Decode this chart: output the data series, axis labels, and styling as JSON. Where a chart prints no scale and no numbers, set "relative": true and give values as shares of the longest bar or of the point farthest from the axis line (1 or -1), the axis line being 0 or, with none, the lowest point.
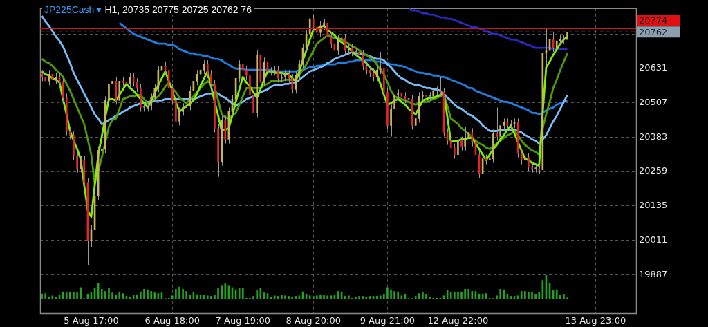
{
  "chart_data": [
    {
      "type": "candlestick",
      "title": "JP225Cash",
      "subtitle": "H1, 20735 20775 20725 20762 76",
      "categories": [
        null,
        null,
        null,
        null,
        null,
        null,
        null,
        null,
        null,
        null,
        null,
        null,
        null,
        null,
        "5 Aug 17:00",
        null,
        null,
        null,
        null,
        null,
        null,
        null,
        null,
        null,
        null,
        null,
        null,
        null,
        null,
        null,
        null,
        null,
        null,
        null,
        null,
        null,
        null,
        "6 Aug 18:00",
        null,
        null,
        null,
        null,
        null,
        null,
        null,
        null,
        null,
        null,
        null,
        null,
        null,
        null,
        null,
        null,
        null,
        null,
        null,
        "7 Aug 19:00",
        null,
        null,
        null,
        null,
        null,
        null,
        null,
        null,
        null,
        null,
        null,
        null,
        null,
        null,
        null,
        null,
        null,
        null,
        null,
        "8 Aug 20:00",
        null,
        null,
        null,
        null,
        null,
        null,
        null,
        null,
        null,
        null,
        null,
        null,
        null,
        null,
        null,
        null,
        null,
        null,
        null,
        null,
        "9 Aug 21:00",
        null,
        null,
        null,
        null,
        null,
        null,
        null,
        null,
        null,
        null,
        null,
        null,
        null,
        null,
        null,
        null,
        null,
        null,
        null,
        "12 Aug 22:00",
        null,
        null,
        null,
        null,
        null,
        null,
        null,
        null,
        null,
        null,
        null,
        null,
        null,
        null,
        null,
        null,
        null,
        null,
        null,
        null,
        null,
        null,
        null,
        null,
        null,
        null,
        null,
        null,
        null,
        null,
        null,
        null,
        null,
        null,
        null,
        null,
        null,
        null,
        "13 Aug 23:00",
        null,
        null,
        null,
        null,
        null,
        null,
        null,
        null,
        null,
        null,
        null
      ],
      "ohlc": [
        [
          20610,
          20625,
          20585,
          20600
        ],
        [
          20600,
          20615,
          20570,
          20585
        ],
        [
          20585,
          20625,
          20570,
          20610
        ],
        [
          20610,
          20625,
          20575,
          20590
        ],
        [
          20590,
          20615,
          20575,
          20600
        ],
        [
          20600,
          20615,
          20565,
          20580
        ],
        [
          20580,
          20595,
          20510,
          20525
        ],
        [
          20525,
          20540,
          20390,
          20405
        ],
        [
          20405,
          20420,
          20375,
          20390
        ],
        [
          20390,
          20405,
          20300,
          20315
        ],
        [
          20315,
          20330,
          20255,
          20270
        ],
        [
          20270,
          20315,
          20255,
          20300
        ],
        [
          20300,
          20315,
          20205,
          20220
        ],
        [
          20220,
          20235,
          19920,
          20010
        ],
        [
          20010,
          20065,
          19985,
          20050
        ],
        [
          20050,
          20185,
          20035,
          20170
        ],
        [
          20170,
          20350,
          20155,
          20335
        ],
        [
          20335,
          20355,
          20320,
          20340
        ],
        [
          20340,
          20530,
          20325,
          20515
        ],
        [
          20515,
          20590,
          20500,
          20575
        ],
        [
          20575,
          20600,
          20560,
          20585
        ],
        [
          20585,
          20600,
          20500,
          20515
        ],
        [
          20515,
          20600,
          20500,
          20585
        ],
        [
          20585,
          20600,
          20565,
          20580
        ],
        [
          20580,
          20595,
          20560,
          20575
        ],
        [
          20575,
          20615,
          20560,
          20600
        ],
        [
          20600,
          20615,
          20565,
          20580
        ],
        [
          20580,
          20595,
          20545,
          20560
        ],
        [
          20560,
          20575,
          20475,
          20490
        ],
        [
          20490,
          20505,
          20475,
          20490
        ],
        [
          20490,
          20510,
          20475,
          20495
        ],
        [
          20495,
          20540,
          20480,
          20525
        ],
        [
          20525,
          20575,
          20510,
          20560
        ],
        [
          20560,
          20640,
          20545,
          20625
        ],
        [
          20625,
          20655,
          20610,
          20640
        ],
        [
          20640,
          20655,
          20610,
          20625
        ],
        [
          20625,
          20640,
          20545,
          20560
        ],
        [
          20560,
          20575,
          20500,
          20515
        ],
        [
          20515,
          20530,
          20425,
          20440
        ],
        [
          20440,
          20490,
          20425,
          20475
        ],
        [
          20475,
          20505,
          20460,
          20490
        ],
        [
          20490,
          20510,
          20475,
          20495
        ],
        [
          20495,
          20565,
          20480,
          20550
        ],
        [
          20550,
          20600,
          20535,
          20585
        ],
        [
          20585,
          20625,
          20570,
          20610
        ],
        [
          20610,
          20640,
          20595,
          20625
        ],
        [
          20625,
          20660,
          20610,
          20645
        ],
        [
          20645,
          20660,
          20595,
          20610
        ],
        [
          20610,
          20625,
          20560,
          20575
        ],
        [
          20575,
          20590,
          20400,
          20415
        ],
        [
          20415,
          20430,
          20240,
          20295
        ],
        [
          20295,
          20460,
          20280,
          20445
        ],
        [
          20445,
          20460,
          20360,
          20375
        ],
        [
          20375,
          20490,
          20360,
          20475
        ],
        [
          20475,
          20535,
          20460,
          20520
        ],
        [
          20520,
          20610,
          20505,
          20595
        ],
        [
          20595,
          20660,
          20580,
          20645
        ],
        [
          20645,
          20660,
          20610,
          20625
        ],
        [
          20625,
          20640,
          20590,
          20605
        ],
        [
          20605,
          20620,
          20520,
          20535
        ],
        [
          20535,
          20550,
          20455,
          20470
        ],
        [
          20470,
          20695,
          20455,
          20680
        ],
        [
          20680,
          20695,
          20565,
          20580
        ],
        [
          20580,
          20670,
          20565,
          20655
        ],
        [
          20655,
          20670,
          20605,
          20620
        ],
        [
          20620,
          20635,
          20605,
          20620
        ],
        [
          20620,
          20640,
          20605,
          20625
        ],
        [
          20625,
          20640,
          20580,
          20595
        ],
        [
          20595,
          20615,
          20580,
          20600
        ],
        [
          20600,
          20625,
          20585,
          20610
        ],
        [
          20610,
          20625,
          20580,
          20595
        ],
        [
          20595,
          20610,
          20540,
          20555
        ],
        [
          20555,
          20620,
          20540,
          20605
        ],
        [
          20605,
          20660,
          20590,
          20645
        ],
        [
          20645,
          20720,
          20630,
          20705
        ],
        [
          20705,
          20770,
          20690,
          20755
        ],
        [
          20755,
          20825,
          20740,
          20810
        ],
        [
          20810,
          20825,
          20765,
          20780
        ],
        [
          20780,
          20795,
          20745,
          20760
        ],
        [
          20760,
          20800,
          20745,
          20785
        ],
        [
          20785,
          20810,
          20770,
          20795
        ],
        [
          20795,
          20810,
          20730,
          20745
        ],
        [
          20745,
          20760,
          20705,
          20720
        ],
        [
          20720,
          20735,
          20680,
          20695
        ],
        [
          20695,
          20750,
          20680,
          20735
        ],
        [
          20735,
          20755,
          20720,
          20740
        ],
        [
          20740,
          20755,
          20680,
          20695
        ],
        [
          20695,
          20720,
          20680,
          20705
        ],
        [
          20705,
          20720,
          20675,
          20690
        ],
        [
          20690,
          20705,
          20675,
          20690
        ],
        [
          20690,
          20705,
          20665,
          20680
        ],
        [
          20680,
          20695,
          20625,
          20640
        ],
        [
          20640,
          20655,
          20610,
          20625
        ],
        [
          20625,
          20640,
          20600,
          20615
        ],
        [
          20615,
          20630,
          20585,
          20600
        ],
        [
          20600,
          20640,
          20585,
          20625
        ],
        [
          20625,
          20690,
          20610,
          20630
        ],
        [
          20630,
          20645,
          20530,
          20545
        ],
        [
          20545,
          20560,
          20410,
          20425
        ],
        [
          20425,
          20500,
          20385,
          20485
        ],
        [
          20485,
          20550,
          20470,
          20535
        ],
        [
          20535,
          20555,
          20520,
          20540
        ],
        [
          20540,
          20555,
          20515,
          20530
        ],
        [
          20530,
          20545,
          20505,
          20520
        ],
        [
          20520,
          20535,
          20505,
          20520
        ],
        [
          20520,
          20535,
          20410,
          20425
        ],
        [
          20425,
          20465,
          20395,
          20450
        ],
        [
          20450,
          20545,
          20435,
          20530
        ],
        [
          20530,
          20550,
          20515,
          20535
        ],
        [
          20535,
          20550,
          20515,
          20530
        ],
        [
          20530,
          20545,
          20515,
          20530
        ],
        [
          20530,
          20565,
          20515,
          20550
        ],
        [
          20550,
          20565,
          20535,
          20550
        ],
        [
          20550,
          20600,
          20530,
          20545
        ],
        [
          20545,
          20560,
          20385,
          20400
        ],
        [
          20400,
          20415,
          20355,
          20370
        ],
        [
          20370,
          20385,
          20330,
          20345
        ],
        [
          20345,
          20360,
          20305,
          20320
        ],
        [
          20320,
          20385,
          20305,
          20370
        ],
        [
          20370,
          20385,
          20335,
          20350
        ],
        [
          20350,
          20420,
          20335,
          20380
        ],
        [
          20380,
          20420,
          20365,
          20400
        ],
        [
          20400,
          20415,
          20350,
          20365
        ],
        [
          20365,
          20380,
          20305,
          20320
        ],
        [
          20320,
          20335,
          20235,
          20250
        ],
        [
          20250,
          20320,
          20235,
          20305
        ],
        [
          20305,
          20320,
          20285,
          20300
        ],
        [
          20300,
          20320,
          20285,
          20305
        ],
        [
          20305,
          20410,
          20290,
          20395
        ],
        [
          20395,
          20490,
          20370,
          20385
        ],
        [
          20385,
          20440,
          20370,
          20425
        ],
        [
          20425,
          20450,
          20410,
          20435
        ],
        [
          20435,
          20450,
          20410,
          20425
        ],
        [
          20425,
          20445,
          20410,
          20430
        ],
        [
          20430,
          20450,
          20415,
          20435
        ],
        [
          20435,
          20450,
          20310,
          20325
        ],
        [
          20325,
          20340,
          20285,
          20300
        ],
        [
          20300,
          20325,
          20285,
          20310
        ],
        [
          20310,
          20325,
          20260,
          20275
        ],
        [
          20275,
          20290,
          20255,
          20270
        ],
        [
          20270,
          20285,
          20255,
          20270
        ],
        [
          20270,
          20285,
          20250,
          20265
        ],
        [
          20265,
          20700,
          20250,
          20685
        ],
        [
          20685,
          20775,
          20640,
          20695
        ],
        [
          20695,
          20765,
          20650,
          20735
        ],
        [
          20735,
          20760,
          20690,
          20705
        ],
        [
          20705,
          20745,
          20665,
          20730
        ],
        [
          20730,
          20750,
          20715,
          20735
        ],
        [
          20735,
          20750,
          20720,
          20735
        ],
        [
          20735,
          20775,
          20725,
          20762
        ],
        null,
        null,
        null,
        null,
        null,
        null,
        null,
        null,
        null,
        null,
        null,
        null,
        null,
        null,
        null,
        null,
        null,
        null,
        null
      ],
      "series": [
        {
          "type": "line",
          "color": "#7cf000",
          "values": [
            20620,
            20610,
            20605,
            20595,
            20590,
            20580,
            20520,
            20465,
            20405,
            20370,
            20340,
            20305,
            20210,
            20120,
            20095,
            20210,
            20320,
            20385,
            20455,
            20520,
            20520,
            20515,
            20535,
            20555,
            20575,
            20560,
            20550,
            20535,
            20520,
            20505,
            20490,
            20515,
            20540,
            20570,
            20595,
            20620,
            20585,
            20550,
            20510,
            20475,
            20485,
            20495,
            20505,
            20515,
            20540,
            20570,
            20595,
            20620,
            20565,
            20510,
            20460,
            20405,
            20410,
            20415,
            20460,
            20510,
            20555,
            20600,
            20580,
            20565,
            20545,
            20525,
            20555,
            20590,
            20620,
            20620,
            20615,
            20615,
            20615,
            20610,
            20610,
            20595,
            20585,
            20620,
            20660,
            20695,
            20735,
            20770,
            20775,
            20780,
            20785,
            20770,
            20760,
            20750,
            20735,
            20725,
            20715,
            20705,
            20690,
            20680,
            20670,
            20660,
            20650,
            20635,
            20625,
            20610,
            20575,
            20535,
            20500,
            20505,
            20515,
            20520,
            20510,
            20500,
            20485,
            20475,
            20465,
            20490,
            20515,
            20520,
            20525,
            20525,
            20530,
            20535,
            20540,
            20455,
            20365,
            20370,
            20370,
            20375,
            20375,
            20380,
            20380,
            20360,
            20340,
            20320,
            20300,
            20320,
            20340,
            20355,
            20375,
            20390,
            20410,
            20425,
            20395,
            20365,
            20335,
            20305,
            20300,
            20290,
            20285,
            20280,
            20470,
            20635,
            20655,
            20680,
            20700,
            20720,
            20735,
            20745,
            null,
            null,
            null,
            null,
            null,
            null,
            null,
            null,
            null,
            null,
            null,
            null,
            null,
            null,
            null,
            null,
            null,
            null,
            null
          ]
        },
        {
          "type": "line",
          "color": "#4f9a06",
          "values": [
            20665,
            20655,
            20650,
            20640,
            20625,
            20615,
            20600,
            20575,
            20550,
            20520,
            20490,
            20460,
            20430,
            20375,
            20320,
            20215,
            20260,
            20310,
            20365,
            20420,
            20445,
            20450,
            20485,
            20520,
            20525,
            20530,
            20530,
            20535,
            20535,
            20520,
            20505,
            20515,
            20520,
            20530,
            20545,
            20565,
            20580,
            20560,
            20545,
            20525,
            20515,
            20505,
            20520,
            20530,
            20545,
            20560,
            20575,
            20585,
            20575,
            20565,
            20515,
            20465,
            20455,
            20450,
            20460,
            20470,
            20500,
            20530,
            20560,
            20560,
            20560,
            20560,
            20560,
            20570,
            20575,
            20585,
            20585,
            20585,
            20585,
            20590,
            20590,
            20590,
            20590,
            20610,
            20625,
            20645,
            20670,
            20695,
            20720,
            20730,
            20740,
            20750,
            20745,
            20740,
            20740,
            20735,
            20725,
            20720,
            20710,
            20705,
            20695,
            20685,
            20680,
            20670,
            20660,
            20645,
            20625,
            20610,
            20580,
            20550,
            20530,
            20525,
            20520,
            20515,
            20510,
            20505,
            20500,
            20505,
            20510,
            20510,
            20515,
            20520,
            20525,
            20530,
            20535,
            20495,
            20450,
            20440,
            20430,
            20415,
            20405,
            20395,
            20380,
            20370,
            20360,
            20355,
            20345,
            20340,
            20350,
            20360,
            20370,
            20380,
            20390,
            20395,
            20405,
            20390,
            20370,
            20355,
            20345,
            20335,
            20330,
            20320,
            20415,
            20465,
            20510,
            20560,
            20590,
            20625,
            20655,
            20685,
            null,
            null,
            null,
            null,
            null,
            null,
            null,
            null,
            null,
            null,
            null,
            null,
            null,
            null,
            null,
            null,
            null,
            null,
            null
          ]
        },
        {
          "type": "line",
          "color": "#78bdf5",
          "values": [
            20820,
            20800,
            20785,
            20765,
            20745,
            20730,
            20710,
            20680,
            20650,
            20615,
            20590,
            20565,
            20540,
            20515,
            20490,
            20465,
            20450,
            20430,
            20435,
            20445,
            20450,
            20460,
            20465,
            20475,
            20480,
            20490,
            20495,
            20500,
            20505,
            20505,
            20510,
            20510,
            20515,
            20515,
            20515,
            20520,
            20520,
            20520,
            20520,
            20520,
            20520,
            20520,
            20520,
            20520,
            20525,
            20530,
            20535,
            20540,
            20540,
            20545,
            20540,
            20530,
            20525,
            20515,
            20505,
            20495,
            20505,
            20510,
            20520,
            20525,
            20530,
            20540,
            20545,
            20550,
            20555,
            20565,
            20570,
            20570,
            20570,
            20575,
            20575,
            20580,
            20580,
            20590,
            20600,
            20610,
            20620,
            20625,
            20630,
            20635,
            20640,
            20650,
            20655,
            20665,
            20670,
            20675,
            20680,
            20685,
            20690,
            20685,
            20685,
            20680,
            20680,
            20675,
            20670,
            20665,
            20665,
            20660,
            20645,
            20635,
            20620,
            20605,
            20595,
            20590,
            20580,
            20575,
            20570,
            20570,
            20565,
            20560,
            20560,
            20555,
            20555,
            20550,
            20540,
            20525,
            20515,
            20500,
            20490,
            20485,
            20475,
            20465,
            20460,
            20450,
            20440,
            20425,
            20415,
            20405,
            20405,
            20405,
            20410,
            20410,
            20410,
            20410,
            20410,
            20405,
            20400,
            20390,
            20385,
            20375,
            20370,
            20360,
            20375,
            20390,
            20415,
            20440,
            20460,
            20485,
            20510,
            20535,
            null,
            null,
            null,
            null,
            null,
            null,
            null,
            null,
            null,
            null,
            null,
            null,
            null,
            null,
            null,
            null,
            null,
            null,
            null
          ]
        },
        {
          "type": "line",
          "color": "#1e7fe0",
          "values": [
            null,
            null,
            null,
            null,
            null,
            null,
            null,
            null,
            null,
            null,
            null,
            null,
            null,
            null,
            null,
            null,
            null,
            null,
            null,
            null,
            null,
            null,
            20795,
            20785,
            20775,
            20765,
            20755,
            20750,
            20745,
            20740,
            20735,
            20730,
            20725,
            20720,
            20720,
            20720,
            20715,
            20715,
            20710,
            20700,
            20695,
            20690,
            20685,
            20685,
            20680,
            20680,
            20675,
            20675,
            20670,
            20665,
            20665,
            20660,
            20650,
            20645,
            20635,
            20630,
            20630,
            20630,
            20625,
            20625,
            20625,
            20625,
            20625,
            20625,
            20625,
            20625,
            20620,
            20620,
            20620,
            20620,
            20620,
            20620,
            20620,
            20625,
            20625,
            20630,
            20635,
            20635,
            20640,
            20640,
            20645,
            20645,
            20645,
            20645,
            20650,
            20650,
            20650,
            20655,
            20655,
            20660,
            20660,
            20660,
            20660,
            20660,
            20660,
            20655,
            20655,
            20650,
            20650,
            20645,
            20645,
            20640,
            20640,
            20635,
            20630,
            20625,
            20620,
            20615,
            20615,
            20610,
            20610,
            20605,
            20605,
            20600,
            20600,
            20595,
            20590,
            20585,
            20580,
            20575,
            20570,
            20560,
            20560,
            20550,
            20545,
            20540,
            20535,
            20530,
            20525,
            20520,
            20515,
            20510,
            20510,
            20505,
            20500,
            20495,
            20490,
            20485,
            20480,
            20470,
            20470,
            20465,
            20470,
            20480,
            20485,
            20490,
            20500,
            20505,
            20510,
            20515,
            null,
            null,
            null,
            null,
            null,
            null,
            null,
            null,
            null,
            null,
            null,
            null,
            null,
            null,
            null,
            null,
            null,
            null,
            null
          ]
        },
        {
          "type": "line",
          "color": "#2a2ac0",
          "values": [
            null,
            null,
            null,
            null,
            null,
            null,
            null,
            null,
            null,
            null,
            null,
            null,
            null,
            null,
            null,
            null,
            null,
            null,
            null,
            null,
            null,
            null,
            null,
            null,
            null,
            null,
            null,
            null,
            null,
            null,
            null,
            null,
            null,
            null,
            null,
            null,
            null,
            null,
            null,
            null,
            null,
            null,
            null,
            null,
            null,
            null,
            null,
            null,
            null,
            null,
            null,
            null,
            null,
            null,
            null,
            null,
            null,
            null,
            null,
            null,
            null,
            null,
            null,
            null,
            null,
            null,
            null,
            null,
            null,
            null,
            null,
            null,
            null,
            null,
            null,
            null,
            null,
            null,
            null,
            null,
            null,
            null,
            null,
            null,
            null,
            null,
            null,
            null,
            null,
            null,
            null,
            null,
            null,
            null,
            null,
            null,
            null,
            null,
            null,
            null,
            null,
            null,
            null,
            null,
            20845,
            20840,
            20840,
            20835,
            20830,
            20830,
            20825,
            20825,
            20820,
            20815,
            20815,
            20810,
            20810,
            20805,
            20800,
            20795,
            20790,
            20785,
            20780,
            20780,
            20775,
            20770,
            20765,
            20760,
            20755,
            20755,
            20750,
            20745,
            20740,
            20735,
            20735,
            20730,
            20725,
            20720,
            20715,
            20710,
            20705,
            20705,
            20705,
            20705,
            20705,
            20700,
            20700,
            20700,
            20700,
            20700,
            null,
            null,
            null,
            null,
            null,
            null,
            null,
            null,
            null,
            null,
            null,
            null,
            null,
            null,
            null,
            null,
            null,
            null,
            null
          ]
        }
      ],
      "ylim": [
        19748,
        20848
      ],
      "yticks": [
        19887,
        20011,
        20135,
        20259,
        20383,
        20507,
        20631,
        {
          "value": 20755,
          "label": null
        }
      ],
      "grid": true,
      "ref_lines": [
        {
          "axis": "y",
          "value": 20774,
          "label": "20774",
          "color": "#e01010",
          "line_style": "solid"
        },
        {
          "axis": "y",
          "value": 20762,
          "label": "20762",
          "color": "#8d9eae",
          "line_style": "dashed"
        }
      ]
    },
    {
      "type": "bar",
      "relative": true,
      "color": "#22a322",
      "tick_labels": false,
      "categories": [
        null,
        null,
        null,
        null,
        null,
        null,
        null,
        null,
        null,
        null,
        null,
        null,
        null,
        null,
        null,
        null,
        null,
        null,
        null,
        null,
        null,
        null,
        null,
        null,
        null,
        null,
        null,
        null,
        null,
        null,
        null,
        null,
        null,
        null,
        null,
        null,
        null,
        null,
        null,
        null,
        null,
        null,
        null,
        null,
        null,
        null,
        null,
        null,
        null,
        null,
        null,
        null,
        null,
        null,
        null,
        null,
        null,
        null,
        null,
        null,
        null,
        null,
        null,
        null,
        null,
        null,
        null,
        null,
        null,
        null,
        null,
        null,
        null,
        null,
        null,
        null,
        null,
        null,
        null,
        null,
        null,
        null,
        null,
        null,
        null,
        null,
        null,
        null,
        null,
        null,
        null,
        null,
        null,
        null,
        null,
        null,
        null,
        null,
        null,
        null,
        null,
        null,
        null,
        null,
        null,
        null,
        null,
        null,
        null,
        null,
        null,
        null,
        null,
        null,
        null,
        null,
        null,
        null,
        null,
        null,
        null,
        null,
        null,
        null,
        null,
        null,
        null,
        null,
        null,
        null,
        null,
        null,
        null,
        null,
        null,
        null,
        null,
        null,
        null,
        null,
        null,
        null,
        null,
        null,
        null,
        null,
        null,
        null,
        null,
        null,
        null,
        null,
        null,
        null,
        null,
        null,
        null,
        null,
        null,
        null,
        null,
        null,
        null,
        null,
        null,
        null,
        null,
        null,
        null
      ],
      "values": [
        0.22,
        0.24,
        0.09,
        0.15,
        0.09,
        0.18,
        0.31,
        0.27,
        0.31,
        0.31,
        0.27,
        0.49,
        0.04,
        0.22,
        0.27,
        0.45,
        0.67,
        0.42,
        0.33,
        0.45,
        0.27,
        0.18,
        0.31,
        0.24,
        0.13,
        0.09,
        0.18,
        0.18,
        0.31,
        0.42,
        0.4,
        0.33,
        0.27,
        0.24,
        0.27,
        0.04,
        0.05,
        0.15,
        0.42,
        0.51,
        0.42,
        0.33,
        0.18,
        0.31,
        0.18,
        0.18,
        0.18,
        0.15,
        0.13,
        0.18,
        0.45,
        0.58,
        0.64,
        0.58,
        0.49,
        0.4,
        0.45,
        0.45,
        0.05,
        0.05,
        0.13,
        0.36,
        0.45,
        0.27,
        0.24,
        0.09,
        0.15,
        0.13,
        0.18,
        0.15,
        0.13,
        0.09,
        0.13,
        0.15,
        0.31,
        0.22,
        0.15,
        0.13,
        0.15,
        0.18,
        0.18,
        0.15,
        0.15,
        0.18,
        0.33,
        0.31,
        0.13,
        0.15,
        0.05,
        0.09,
        0.13,
        0.13,
        0.09,
        0.13,
        0.13,
        0.13,
        0.15,
        0.22,
        0.49,
        0.4,
        0.33,
        0.31,
        0.15,
        0.22,
        0.04,
        0.04,
        0.13,
        0.24,
        0.31,
        0.22,
        0.09,
        0.05,
        0.05,
        0.05,
        0.15,
        0.36,
        0.31,
        0.31,
        0.31,
        0.31,
        0.42,
        0.42,
        0.33,
        0.33,
        0.22,
        0.22,
        0.24,
        0.04,
        0.04,
        0.15,
        0.42,
        0.4,
        0.22,
        0.13,
        0.13,
        0.15,
        0.33,
        0.33,
        0.31,
        0.31,
        0.22,
        0.31,
        0.78,
        1,
        0.67,
        0.36,
        0.4,
        0.18,
        0.22,
        0.07,
        null,
        null,
        null,
        null,
        null,
        null,
        null,
        null,
        null,
        null,
        null,
        null,
        null,
        null,
        null,
        null,
        null,
        null,
        null
      ]
    }
  ]
}
